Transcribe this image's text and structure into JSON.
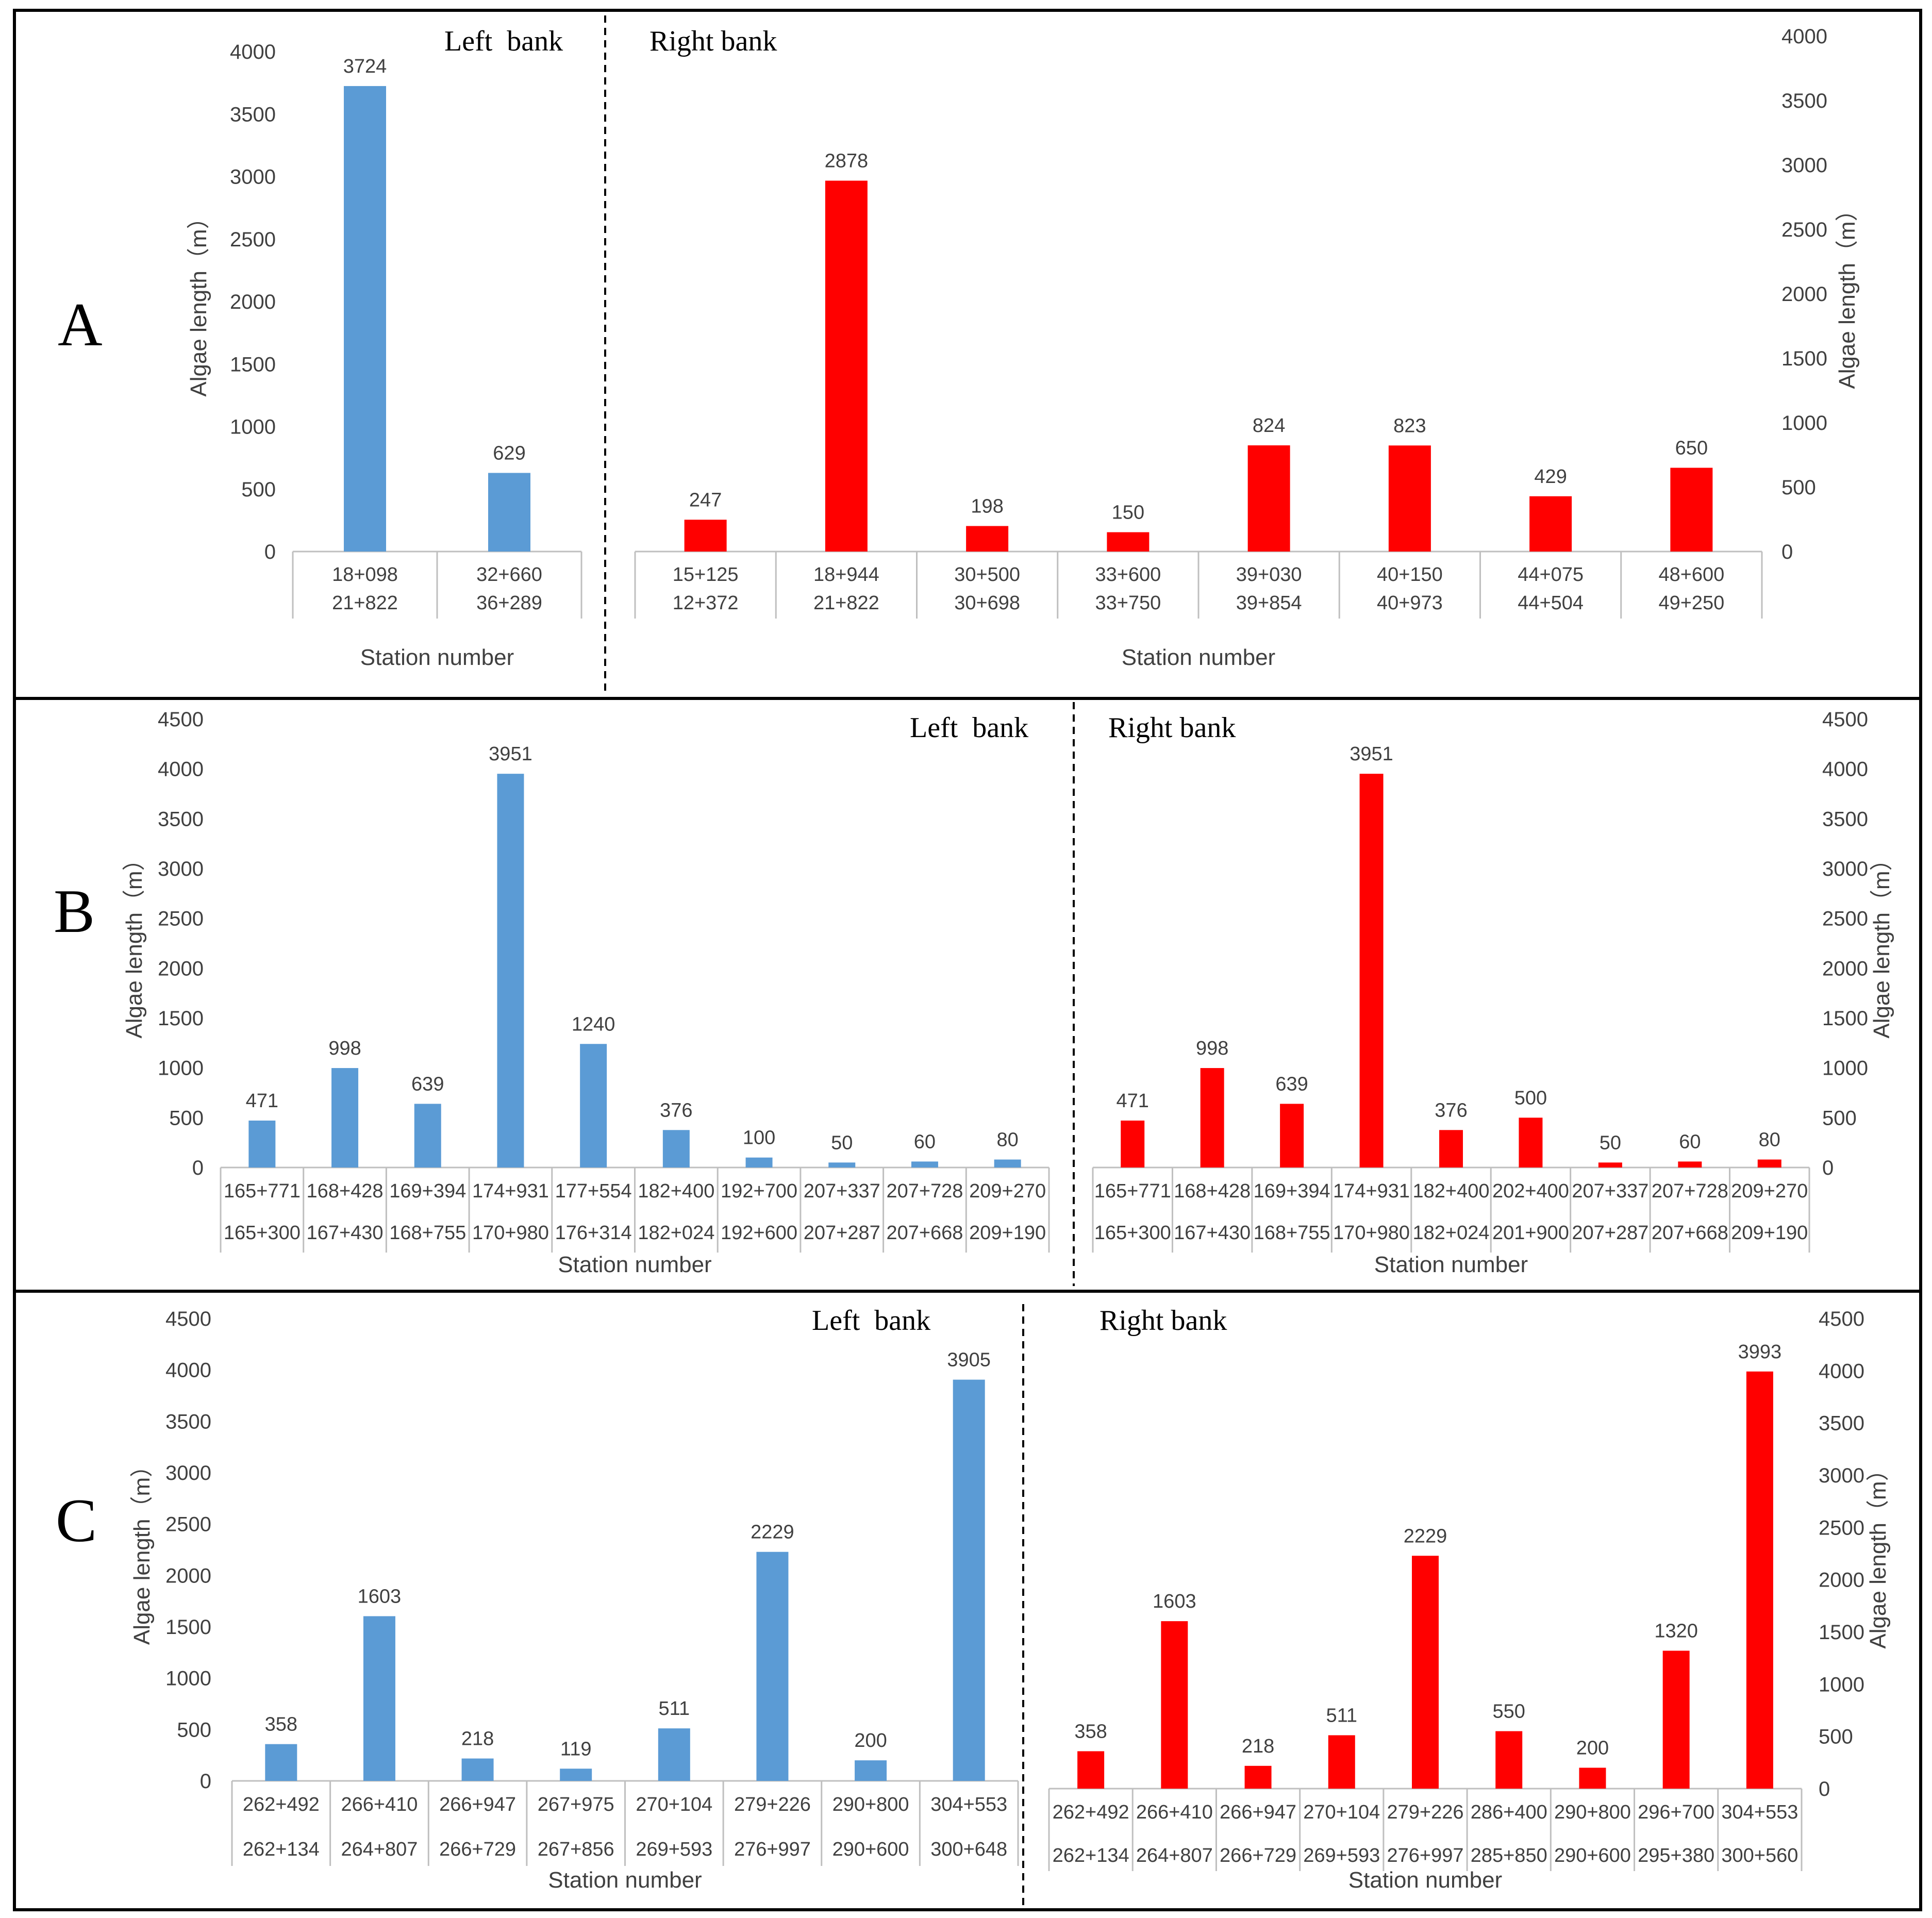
{
  "colors": {
    "left_bank": "#5b9bd5",
    "right_bank": "#ff0000"
  },
  "panels": [
    {
      "label": "A",
      "left_bank_title": "Left  bank",
      "right_bank_title": "Right bank"
    },
    {
      "label": "B",
      "left_bank_title": "Left  bank",
      "right_bank_title": "Right bank"
    },
    {
      "label": "C",
      "left_bank_title": "Left  bank",
      "right_bank_title": "Right bank"
    }
  ],
  "chart_data": [
    {
      "panel": "A",
      "bank": "Left bank",
      "type": "bar",
      "color": "#5b9bd5",
      "ylabel": "Algae length（m）",
      "xlabel": "Station number",
      "ylim": [
        0,
        4000
      ],
      "yticks": [
        0,
        500,
        1000,
        1500,
        2000,
        2500,
        3000,
        3500,
        4000
      ],
      "categories": [
        [
          "18+098",
          "21+822"
        ],
        [
          "32+660",
          "36+289"
        ]
      ],
      "values": [
        3724,
        629
      ]
    },
    {
      "panel": "A",
      "bank": "Right bank",
      "type": "bar",
      "color": "#ff0000",
      "ylabel": "Algae length（m）",
      "xlabel": "Station number",
      "ylim": [
        0,
        4000
      ],
      "yticks": [
        0,
        500,
        1000,
        1500,
        2000,
        2500,
        3000,
        3500,
        4000
      ],
      "categories": [
        [
          "15+125",
          "12+372"
        ],
        [
          "18+944",
          "21+822"
        ],
        [
          "30+500",
          "30+698"
        ],
        [
          "33+600",
          "33+750"
        ],
        [
          "39+030",
          "39+854"
        ],
        [
          "40+150",
          "40+973"
        ],
        [
          "44+075",
          "44+504"
        ],
        [
          "48+600",
          "49+250"
        ]
      ],
      "values": [
        247,
        2878,
        198,
        150,
        824,
        823,
        429,
        650
      ]
    },
    {
      "panel": "B",
      "bank": "Left bank",
      "type": "bar",
      "color": "#5b9bd5",
      "ylabel": "Algae length（m）",
      "xlabel": "Station number",
      "ylim": [
        0,
        4500
      ],
      "yticks": [
        0,
        500,
        1000,
        1500,
        2000,
        2500,
        3000,
        3500,
        4000,
        4500
      ],
      "categories": [
        [
          "165+771",
          "165+300"
        ],
        [
          "168+428",
          "167+430"
        ],
        [
          "169+394",
          "168+755"
        ],
        [
          "174+931",
          "170+980"
        ],
        [
          "177+554",
          "176+314"
        ],
        [
          "182+400",
          "182+024"
        ],
        [
          "192+700",
          "192+600"
        ],
        [
          "207+337",
          "207+287"
        ],
        [
          "207+728",
          "207+668"
        ],
        [
          "209+270",
          "209+190"
        ]
      ],
      "values": [
        471,
        998,
        639,
        3951,
        1240,
        376,
        100,
        50,
        60,
        80
      ]
    },
    {
      "panel": "B",
      "bank": "Right bank",
      "type": "bar",
      "color": "#ff0000",
      "ylabel": "Algae length（m）",
      "xlabel": "Station number",
      "ylim": [
        0,
        4500
      ],
      "yticks": [
        0,
        500,
        1000,
        1500,
        2000,
        2500,
        3000,
        3500,
        4000,
        4500
      ],
      "categories": [
        [
          "165+771",
          "165+300"
        ],
        [
          "168+428",
          "167+430"
        ],
        [
          "169+394",
          "168+755"
        ],
        [
          "174+931",
          "170+980"
        ],
        [
          "182+400",
          "182+024"
        ],
        [
          "202+400",
          "201+900"
        ],
        [
          "207+337",
          "207+287"
        ],
        [
          "207+728",
          "207+668"
        ],
        [
          "209+270",
          "209+190"
        ]
      ],
      "values": [
        471,
        998,
        639,
        3951,
        376,
        500,
        50,
        60,
        80
      ]
    },
    {
      "panel": "C",
      "bank": "Left bank",
      "type": "bar",
      "color": "#5b9bd5",
      "ylabel": "Algae length（m）",
      "xlabel": "Station number",
      "ylim": [
        0,
        4500
      ],
      "yticks": [
        0,
        500,
        1000,
        1500,
        2000,
        2500,
        3000,
        3500,
        4000,
        4500
      ],
      "categories": [
        [
          "262+492",
          "262+134"
        ],
        [
          "266+410",
          "264+807"
        ],
        [
          "266+947",
          "266+729"
        ],
        [
          "267+975",
          "267+856"
        ],
        [
          "270+104",
          "269+593"
        ],
        [
          "279+226",
          "276+997"
        ],
        [
          "290+800",
          "290+600"
        ],
        [
          "304+553",
          "300+648"
        ]
      ],
      "values": [
        358,
        1603,
        218,
        119,
        511,
        2229,
        200,
        3905
      ]
    },
    {
      "panel": "C",
      "bank": "Right bank",
      "type": "bar",
      "color": "#ff0000",
      "ylabel": "Algae length（m）",
      "xlabel": "Station number",
      "ylim": [
        0,
        4500
      ],
      "yticks": [
        0,
        500,
        1000,
        1500,
        2000,
        2500,
        3000,
        3500,
        4000,
        4500
      ],
      "categories": [
        [
          "262+492",
          "262+134"
        ],
        [
          "266+410",
          "264+807"
        ],
        [
          "266+947",
          "266+729"
        ],
        [
          "270+104",
          "269+593"
        ],
        [
          "279+226",
          "276+997"
        ],
        [
          "286+400",
          "285+850"
        ],
        [
          "290+800",
          "290+600"
        ],
        [
          "296+700",
          "295+380"
        ],
        [
          "304+553",
          "300+560"
        ]
      ],
      "values": [
        358,
        1603,
        218,
        511,
        2229,
        550,
        200,
        1320,
        3993
      ]
    }
  ]
}
